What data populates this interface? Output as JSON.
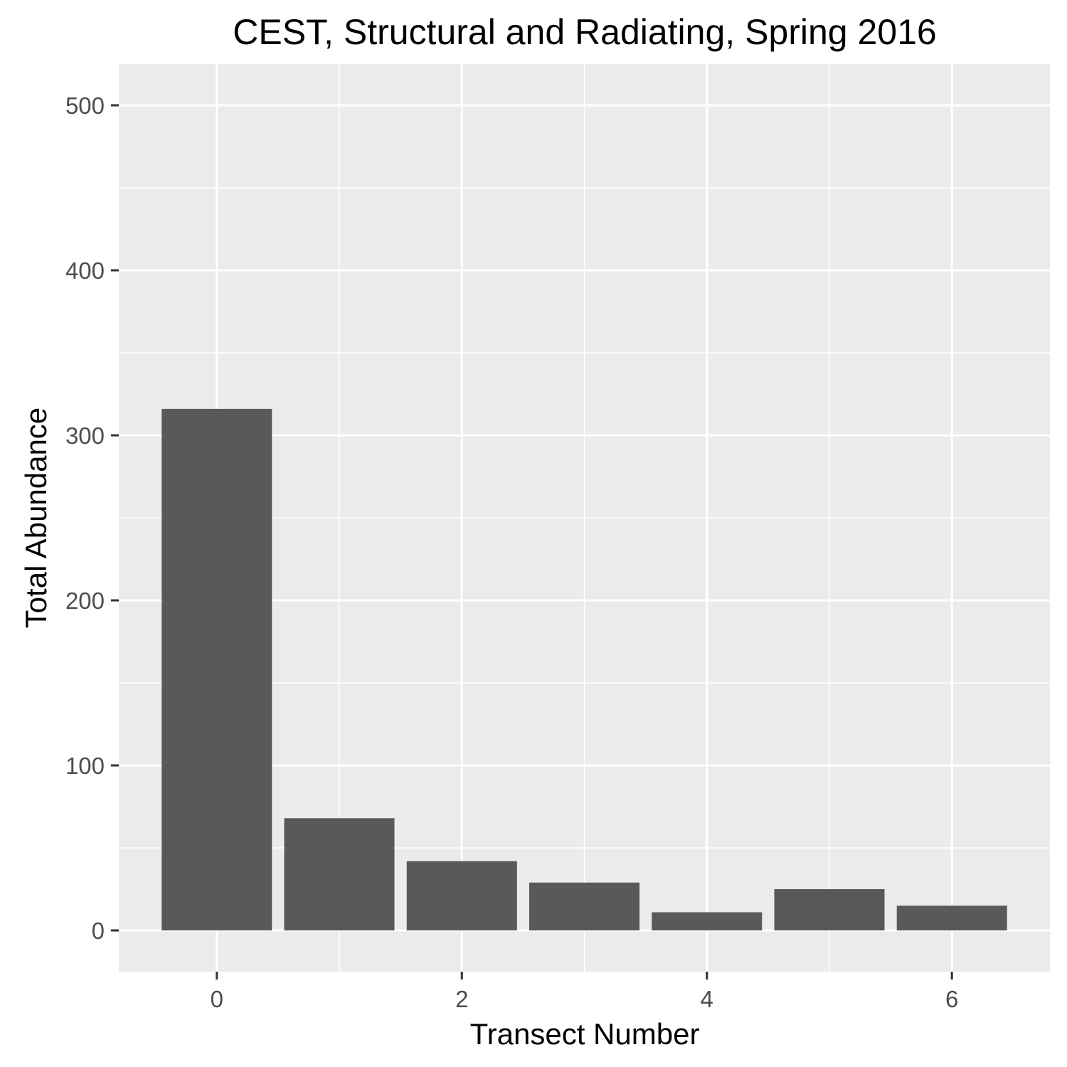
{
  "chart_data": {
    "type": "bar",
    "title": "CEST, Structural and Radiating, Spring 2016",
    "xlabel": "Transect Number",
    "ylabel": "Total Abundance",
    "x": [
      0,
      1,
      2,
      3,
      4,
      5,
      6
    ],
    "values": [
      316,
      68,
      42,
      29,
      11,
      25,
      15
    ],
    "xlim": [
      -0.8,
      6.8
    ],
    "ylim": [
      -25,
      525
    ],
    "x_ticks": [
      0,
      2,
      4,
      6
    ],
    "x_tick_labels": [
      "0",
      "2",
      "4",
      "6"
    ],
    "y_ticks": [
      0,
      100,
      200,
      300,
      400,
      500
    ],
    "y_tick_labels": [
      "0",
      "100",
      "200",
      "300",
      "400",
      "500"
    ],
    "grid": true,
    "legend": "none",
    "colors": {
      "bar": "#595959",
      "panel": "#ebebeb",
      "grid": "#ffffff",
      "tick": "#333333",
      "tick_label": "#4d4d4d",
      "text": "#000000"
    }
  }
}
